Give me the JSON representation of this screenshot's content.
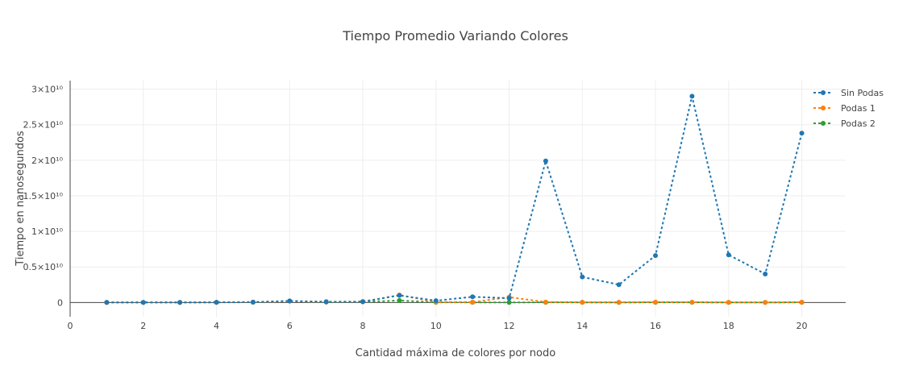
{
  "chart_data": {
    "type": "line",
    "title": "Tiempo Promedio Variando Colores",
    "xlabel": "Cantidad máxima de colores por nodo",
    "ylabel": "Tiempo en nanosegundos",
    "xlim": [
      0,
      21.2
    ],
    "ylim": [
      -2000000000,
      31200000000
    ],
    "x_ticks": [
      0,
      2,
      4,
      6,
      8,
      10,
      12,
      14,
      16,
      18,
      20
    ],
    "y_ticks": [
      {
        "value": 0,
        "label": "0"
      },
      {
        "value": 5000000000,
        "label": "0.5×10¹⁰"
      },
      {
        "value": 10000000000,
        "label": "1×10¹⁰"
      },
      {
        "value": 15000000000,
        "label": "1.5×10¹⁰"
      },
      {
        "value": 20000000000,
        "label": "2×10¹⁰"
      },
      {
        "value": 25000000000,
        "label": "2.5×10¹⁰"
      },
      {
        "value": 30000000000,
        "label": "3×10¹⁰"
      }
    ],
    "grid": true,
    "legend_position": "top-right",
    "x": [
      1,
      2,
      3,
      4,
      5,
      6,
      7,
      8,
      9,
      10,
      11,
      12,
      13,
      14,
      15,
      16,
      17,
      18,
      19,
      20
    ],
    "series": [
      {
        "name": "Sin Podas",
        "color": "#1f77b4",
        "values": [
          10000000,
          10000000,
          10000000,
          30000000,
          60000000,
          220000000,
          110000000,
          120000000,
          1000000000,
          250000000,
          800000000,
          600000000,
          19900000000,
          3600000000,
          2500000000,
          6600000000,
          29000000000,
          6700000000,
          4000000000,
          23800000000
        ]
      },
      {
        "name": "Podas 1",
        "color": "#ff7f0e",
        "values": [
          10000000,
          10000000,
          10000000,
          30000000,
          60000000,
          180000000,
          100000000,
          120000000,
          1050000000,
          50000000,
          50000000,
          750000000,
          60000000,
          30000000,
          20000000,
          60000000,
          40000000,
          20000000,
          10000000,
          40000000
        ]
      },
      {
        "name": "Podas 2",
        "color": "#2ca02c",
        "values": [
          10000000,
          10000000,
          10000000,
          20000000,
          40000000,
          200000000,
          50000000,
          90000000,
          280000000,
          30000000,
          20000000,
          10000000,
          30000000,
          20000000,
          10000000,
          30000000,
          30000000,
          10000000,
          10000000,
          30000000
        ]
      }
    ]
  }
}
